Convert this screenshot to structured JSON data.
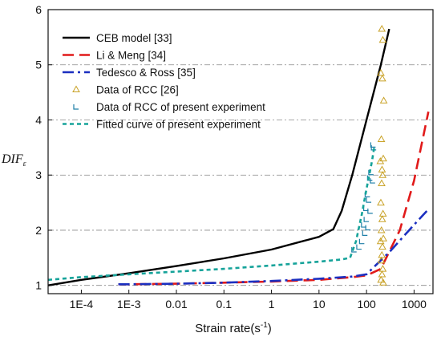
{
  "chart_data": {
    "type": "line",
    "title": "",
    "xlabel": "Strain rate(s",
    "xlabel_sup": "-1",
    "xlabel_close": ")",
    "ylabel": "DIF",
    "ylabel_sub": "ε",
    "x_scale": "log",
    "xlim": [
      2e-05,
      2500
    ],
    "ylim": [
      0.85,
      6
    ],
    "x_ticks": [
      {
        "value": 0.0001,
        "label": "1E-4"
      },
      {
        "value": 0.001,
        "label": "1E-3"
      },
      {
        "value": 0.01,
        "label": "0.01"
      },
      {
        "value": 0.1,
        "label": "0.1"
      },
      {
        "value": 1,
        "label": "1"
      },
      {
        "value": 10,
        "label": "10"
      },
      {
        "value": 100,
        "label": "100"
      },
      {
        "value": 1000,
        "label": "1000"
      }
    ],
    "y_ticks": [
      {
        "value": 1,
        "label": "1"
      },
      {
        "value": 2,
        "label": "2"
      },
      {
        "value": 3,
        "label": "3"
      },
      {
        "value": 4,
        "label": "4"
      },
      {
        "value": 5,
        "label": "5"
      },
      {
        "value": 6,
        "label": "6"
      }
    ],
    "grid": "horizontal dash-dot",
    "legend_position": "top-left",
    "series": [
      {
        "name": "CEB model [33]",
        "kind": "line",
        "style": "solid",
        "color": "#000000",
        "x": [
          2e-05,
          0.0001,
          0.001,
          0.01,
          0.1,
          1,
          10,
          20,
          30,
          50,
          100,
          200,
          300
        ],
        "y": [
          1.0,
          1.1,
          1.22,
          1.35,
          1.49,
          1.65,
          1.88,
          2.02,
          2.35,
          3.0,
          4.0,
          5.0,
          5.65
        ]
      },
      {
        "name": "Li & Meng [34]",
        "kind": "line",
        "style": "dash",
        "color": "#e11a1a",
        "x": [
          0.0006,
          0.001,
          0.01,
          0.1,
          1,
          10,
          50,
          100,
          200,
          500,
          1000,
          2000
        ],
        "y": [
          1.02,
          1.02,
          1.03,
          1.05,
          1.07,
          1.1,
          1.15,
          1.18,
          1.3,
          2.0,
          2.9,
          4.15
        ]
      },
      {
        "name": "Tedesco & Ross [35]",
        "kind": "line",
        "style": "dashdot",
        "color": "#1b2fc0",
        "x": [
          0.0006,
          0.001,
          0.01,
          0.1,
          1,
          10,
          50,
          100,
          150,
          300,
          1000,
          2000
        ],
        "y": [
          1.02,
          1.02,
          1.03,
          1.05,
          1.08,
          1.12,
          1.16,
          1.2,
          1.35,
          1.6,
          2.1,
          2.38
        ]
      },
      {
        "name": "Data of RCC [26]",
        "kind": "scatter",
        "marker": "triangle",
        "color": "#c9a227",
        "x": [
          210,
          220,
          200,
          215,
          230,
          205,
          225,
          195,
          212,
          218,
          208,
          200,
          222,
          214,
          206,
          226,
          198,
          216,
          210,
          204,
          220,
          212,
          202,
          224
        ],
        "y": [
          5.65,
          5.45,
          4.85,
          4.75,
          4.35,
          3.65,
          3.3,
          3.25,
          3.1,
          3.0,
          2.85,
          2.5,
          2.3,
          2.2,
          2.0,
          1.85,
          1.8,
          1.7,
          1.55,
          1.45,
          1.3,
          1.2,
          1.1,
          1.05
        ]
      },
      {
        "name": "Data of RCC of present experiment",
        "kind": "scatter",
        "marker": "bracket",
        "color": "#1f7fa8",
        "x": [
          138,
          142,
          125,
          118,
          135,
          105,
          112,
          98,
          120,
          100,
          88,
          108,
          93,
          80,
          70,
          55
        ],
        "y": [
          3.55,
          3.5,
          3.05,
          2.95,
          2.9,
          2.65,
          2.55,
          2.4,
          2.35,
          2.2,
          2.1,
          2.05,
          1.95,
          1.8,
          1.7,
          1.65
        ]
      },
      {
        "name": "Fitted curve of present experiment",
        "kind": "line",
        "style": "dot",
        "color": "#16a39a",
        "x": [
          2e-05,
          0.0001,
          0.001,
          0.01,
          0.1,
          1,
          10,
          30,
          45,
          60,
          80,
          100,
          130,
          145
        ],
        "y": [
          1.1,
          1.15,
          1.2,
          1.25,
          1.3,
          1.36,
          1.43,
          1.47,
          1.5,
          1.8,
          2.3,
          2.75,
          3.25,
          3.5
        ]
      }
    ]
  }
}
